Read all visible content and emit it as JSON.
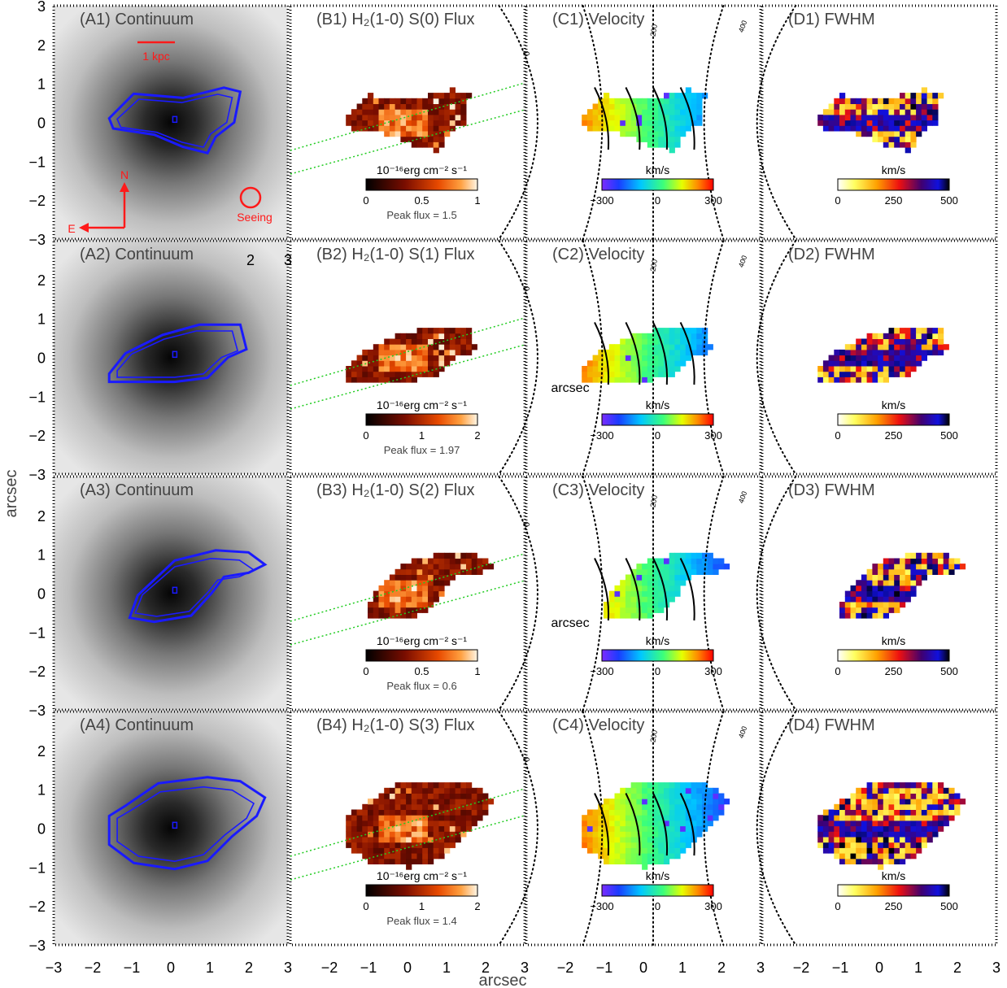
{
  "figure": {
    "ylabel": "arcsec",
    "xlabel": "arcsec",
    "tick_labels": [
      "−3",
      "−2",
      "−1",
      "0",
      "1",
      "2",
      "3"
    ],
    "x_tick_labels_by_panel": [
      [
        "−3",
        "−2",
        "−1",
        "0",
        "1",
        "2",
        "3"
      ],
      [
        "−2",
        "−1",
        "0",
        "1",
        "2",
        "3"
      ],
      [
        "−2",
        "−1",
        "0",
        "1",
        "2",
        "3"
      ],
      [
        "−2",
        "−1",
        "0",
        "1",
        "2",
        "3"
      ]
    ]
  },
  "annotations": {
    "scalebar_label": "1 kpc",
    "north": "N",
    "east": "E",
    "seeing": "Seeing",
    "stray_2": "2",
    "stray_3": "3",
    "stray_arcsec": "arcsec",
    "contour_0": "0",
    "contour_200": "200",
    "contour_400": "400",
    "units_flux": "10⁻¹⁶erg cm⁻² s⁻¹",
    "units_kms": "km/s"
  },
  "colors": {
    "contour_blue": "#1a1aff",
    "annotation_red": "#ff1a1a",
    "slit_green": "#22cc22",
    "frame": "#000000",
    "label_gray": "#444444"
  },
  "chart_data": [
    {
      "type": "heatmap",
      "panel": "A1",
      "title": "(A1) Continuum",
      "xlim": [
        -3,
        3
      ],
      "ylim": [
        -3,
        3
      ],
      "colormap": "gray"
    },
    {
      "type": "heatmap",
      "panel": "B1",
      "title": "(B1) H₂(1-0) S(0) Flux",
      "colorbar_ticks": [
        "0",
        "0.5",
        "1"
      ],
      "colorbar_range": [
        0,
        1
      ],
      "units": "10⁻¹⁶erg cm⁻² s⁻¹",
      "peak": "Peak flux = 1.5",
      "colormap": "heat"
    },
    {
      "type": "heatmap",
      "panel": "C1",
      "title": "(C1) Velocity",
      "colorbar_ticks": [
        "−300",
        "0",
        "300"
      ],
      "colorbar_range": [
        -300,
        300
      ],
      "units": "km/s",
      "colormap": "rainbow"
    },
    {
      "type": "heatmap",
      "panel": "D1",
      "title": "(D1) FWHM",
      "colorbar_ticks": [
        "0",
        "250",
        "500"
      ],
      "colorbar_range": [
        0,
        500
      ],
      "units": "km/s",
      "colormap": "fwhm"
    },
    {
      "type": "heatmap",
      "panel": "A2",
      "title": "(A2) Continuum",
      "xlim": [
        -3,
        3
      ],
      "ylim": [
        -3,
        3
      ],
      "colormap": "gray"
    },
    {
      "type": "heatmap",
      "panel": "B2",
      "title": "(B2) H₂(1-0) S(1) Flux",
      "colorbar_ticks": [
        "0",
        "1",
        "2"
      ],
      "colorbar_range": [
        0,
        2
      ],
      "units": "10⁻¹⁶erg cm⁻² s⁻¹",
      "peak": "Peak flux = 1.97",
      "colormap": "heat"
    },
    {
      "type": "heatmap",
      "panel": "C2",
      "title": "(C2) Velocity",
      "colorbar_ticks": [
        "−300",
        "0",
        "300"
      ],
      "colorbar_range": [
        -300,
        300
      ],
      "units": "km/s",
      "colormap": "rainbow"
    },
    {
      "type": "heatmap",
      "panel": "D2",
      "title": "(D2) FWHM",
      "colorbar_ticks": [
        "0",
        "250",
        "500"
      ],
      "colorbar_range": [
        0,
        500
      ],
      "units": "km/s",
      "colormap": "fwhm"
    },
    {
      "type": "heatmap",
      "panel": "A3",
      "title": "(A3) Continuum",
      "xlim": [
        -3,
        3
      ],
      "ylim": [
        -3,
        3
      ],
      "colormap": "gray"
    },
    {
      "type": "heatmap",
      "panel": "B3",
      "title": "(B3) H₂(1-0) S(2) Flux",
      "colorbar_ticks": [
        "0",
        "0.5",
        "1"
      ],
      "colorbar_range": [
        0,
        1
      ],
      "units": "10⁻¹⁶erg cm⁻² s⁻¹",
      "peak": "Peak flux = 0.6",
      "colormap": "heat"
    },
    {
      "type": "heatmap",
      "panel": "C3",
      "title": "(C3) Velocity",
      "colorbar_ticks": [
        "−300",
        "0",
        "300"
      ],
      "colorbar_range": [
        -300,
        300
      ],
      "units": "km/s",
      "colormap": "rainbow"
    },
    {
      "type": "heatmap",
      "panel": "D3",
      "title": "(D3) FWHM",
      "colorbar_ticks": [
        "0",
        "250",
        "500"
      ],
      "colorbar_range": [
        0,
        500
      ],
      "units": "km/s",
      "colormap": "fwhm"
    },
    {
      "type": "heatmap",
      "panel": "A4",
      "title": "(A4) Continuum",
      "xlim": [
        -3,
        3
      ],
      "ylim": [
        -3,
        3
      ],
      "colormap": "gray"
    },
    {
      "type": "heatmap",
      "panel": "B4",
      "title": "(B4) H₂(1-0) S(3) Flux",
      "colorbar_ticks": [
        "0",
        "1",
        "2"
      ],
      "colorbar_range": [
        0,
        2
      ],
      "units": "10⁻¹⁶erg cm⁻² s⁻¹",
      "peak": "Peak flux = 1.4",
      "colormap": "heat"
    },
    {
      "type": "heatmap",
      "panel": "C4",
      "title": "(C4) Velocity",
      "colorbar_ticks": [
        "−300",
        "0",
        "300"
      ],
      "colorbar_range": [
        -300,
        300
      ],
      "units": "km/s",
      "colormap": "rainbow"
    },
    {
      "type": "heatmap",
      "panel": "D4",
      "title": "(D4) FWHM",
      "colorbar_ticks": [
        "0",
        "250",
        "500"
      ],
      "colorbar_range": [
        0,
        500
      ],
      "units": "km/s",
      "colormap": "fwhm"
    }
  ]
}
